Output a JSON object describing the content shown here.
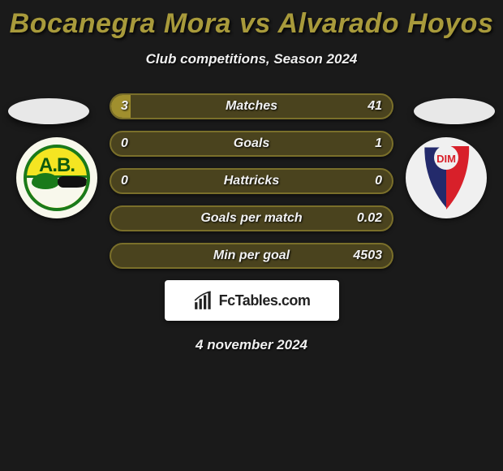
{
  "header": {
    "title": "Bocanegra Mora vs Alvarado Hoyos",
    "subtitle": "Club competitions, Season 2024"
  },
  "colors": {
    "background": "#1a1a1a",
    "accent": "#a89a3b",
    "bar_bg": "#4a431e",
    "bar_border": "#7a6f2a",
    "bar_fill": "#a08f2e",
    "text": "#f2f2f2"
  },
  "badges": {
    "left": {
      "label": "A.B.",
      "primary": "#f4e522",
      "secondary": "#1a7a1a"
    },
    "right": {
      "label": "DIM",
      "red": "#d8202a",
      "blue": "#232a6b",
      "outline": "#f0f0f0"
    }
  },
  "stats": {
    "rows": [
      {
        "label": "Matches",
        "left": "3",
        "right": "41",
        "fill_pct": 7
      },
      {
        "label": "Goals",
        "left": "0",
        "right": "1",
        "fill_pct": 0
      },
      {
        "label": "Hattricks",
        "left": "0",
        "right": "0",
        "fill_pct": 0
      },
      {
        "label": "Goals per match",
        "left": "",
        "right": "0.02",
        "fill_pct": 0
      },
      {
        "label": "Min per goal",
        "left": "",
        "right": "4503",
        "fill_pct": 0
      }
    ]
  },
  "watermark": {
    "text": "FcTables.com"
  },
  "date": "4 november 2024"
}
